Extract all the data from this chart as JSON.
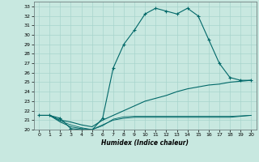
{
  "title": "",
  "xlabel": "Humidex (Indice chaleur)",
  "background_color": "#c8e8e0",
  "grid_color": "#a8d4cc",
  "line_color": "#006868",
  "xlim": [
    -0.5,
    20.5
  ],
  "ylim": [
    20,
    33.5
  ],
  "xticks": [
    0,
    1,
    2,
    3,
    4,
    5,
    6,
    7,
    8,
    9,
    10,
    11,
    12,
    13,
    14,
    15,
    16,
    17,
    18,
    19,
    20
  ],
  "yticks": [
    20,
    21,
    22,
    23,
    24,
    25,
    26,
    27,
    28,
    29,
    30,
    31,
    32,
    33
  ],
  "series": [
    {
      "x": [
        0,
        1,
        2,
        3,
        4,
        5,
        6,
        7,
        8,
        9,
        10,
        11,
        12,
        13,
        14,
        15,
        16,
        17,
        18,
        19,
        20
      ],
      "y": [
        21.5,
        21.5,
        21.2,
        20.1,
        20.0,
        19.95,
        21.2,
        26.5,
        29.0,
        30.5,
        32.2,
        32.8,
        32.5,
        32.2,
        32.8,
        32.0,
        29.5,
        27.0,
        25.5,
        25.2,
        25.2
      ],
      "marker": "+",
      "linewidth": 0.8,
      "markersize": 3
    },
    {
      "x": [
        0,
        1,
        2,
        3,
        4,
        5,
        6,
        7,
        8,
        9,
        10,
        11,
        12,
        13,
        14,
        15,
        16,
        17,
        18,
        19,
        20
      ],
      "y": [
        21.5,
        21.5,
        21.0,
        20.8,
        20.5,
        20.3,
        21.0,
        21.5,
        22.0,
        22.5,
        23.0,
        23.3,
        23.6,
        24.0,
        24.3,
        24.5,
        24.7,
        24.8,
        25.0,
        25.1,
        25.2
      ],
      "marker": null,
      "linewidth": 0.8,
      "markersize": 0
    },
    {
      "x": [
        0,
        1,
        2,
        3,
        4,
        5,
        6,
        7,
        8,
        9,
        10,
        11,
        12,
        13,
        14,
        15,
        16,
        17,
        18,
        19,
        20
      ],
      "y": [
        21.5,
        21.5,
        20.8,
        20.3,
        20.1,
        20.0,
        20.5,
        21.0,
        21.2,
        21.3,
        21.3,
        21.3,
        21.3,
        21.3,
        21.3,
        21.3,
        21.3,
        21.3,
        21.3,
        21.4,
        21.5
      ],
      "marker": null,
      "linewidth": 0.7,
      "markersize": 0
    },
    {
      "x": [
        0,
        1,
        2,
        3,
        4,
        5,
        6,
        7,
        8,
        9,
        10,
        11,
        12,
        13,
        14,
        15,
        16,
        17,
        18,
        19,
        20
      ],
      "y": [
        21.5,
        21.5,
        20.9,
        20.5,
        20.2,
        20.0,
        20.4,
        21.1,
        21.35,
        21.4,
        21.4,
        21.4,
        21.4,
        21.4,
        21.4,
        21.4,
        21.4,
        21.4,
        21.4,
        21.45,
        21.5
      ],
      "marker": null,
      "linewidth": 0.6,
      "markersize": 0
    }
  ]
}
